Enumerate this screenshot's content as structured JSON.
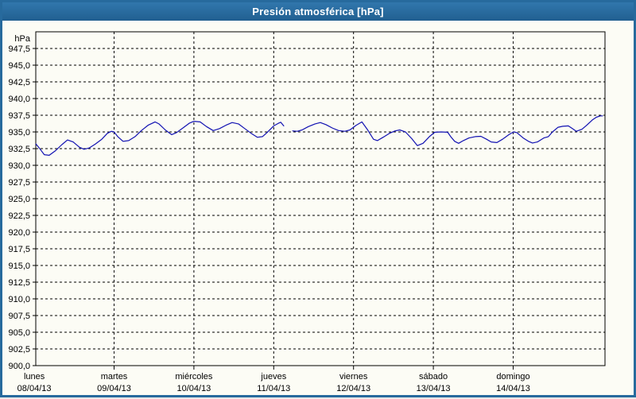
{
  "window": {
    "title": "Presión atmosférica [hPa]"
  },
  "colors": {
    "titlebar_bg": "#276a9d",
    "titlebar_text": "#ffffff",
    "window_border": "#276a9d",
    "body_bg": "#fcfcf5",
    "plot_frame": "#000000",
    "grid": "#000000",
    "line": "#1111b2"
  },
  "chart_data": {
    "type": "line",
    "title": "Presión atmosférica [hPa]",
    "unit_label": "hPa",
    "ylim": [
      900,
      950
    ],
    "ytick_step": 2.5,
    "ytick_values": [
      947.5,
      945,
      942.5,
      940,
      937.5,
      935,
      932.5,
      930,
      927.5,
      925,
      922.5,
      920,
      917.5,
      915,
      912.5,
      910,
      907.5,
      905,
      902.5,
      900
    ],
    "ytick_labels": [
      "947,5",
      "945,0",
      "942,5",
      "940,0",
      "937,5",
      "935,0",
      "932,5",
      "930,0",
      "927,5",
      "925,0",
      "922,5",
      "920,0",
      "917,5",
      "915,0",
      "912,5",
      "910,0",
      "907,5",
      "905,0",
      "902,5",
      "900,0"
    ],
    "grid": "dashed",
    "legend_position": "none",
    "x_axis": {
      "days": [
        {
          "name": "lunes",
          "date": "08/04/13"
        },
        {
          "name": "martes",
          "date": "09/04/13"
        },
        {
          "name": "miércoles",
          "date": "10/04/13"
        },
        {
          "name": "jueves",
          "date": "11/04/13"
        },
        {
          "name": "viernes",
          "date": "12/04/13"
        },
        {
          "name": "sábado",
          "date": "13/04/13"
        },
        {
          "name": "domingo",
          "date": "14/04/13"
        }
      ],
      "hours_total": 171.6,
      "day_boundaary_lines_hours": [
        24,
        48,
        72,
        96,
        120,
        144
      ]
    },
    "series": [
      {
        "name": "Presión atmosférica",
        "color": "#1111b2",
        "x_unit": "hours since lunes 08/04/13 00:00",
        "points": [
          [
            0.5,
            933.2
          ],
          [
            1.5,
            932.6
          ],
          [
            3,
            931.6
          ],
          [
            4.5,
            931.5
          ],
          [
            6.4,
            932.2
          ],
          [
            8.3,
            933.1
          ],
          [
            10,
            933.8
          ],
          [
            11.7,
            933.5
          ],
          [
            13.6,
            932.7
          ],
          [
            15,
            932.4
          ],
          [
            16.5,
            932.6
          ],
          [
            18.4,
            933.2
          ],
          [
            20.3,
            933.9
          ],
          [
            22,
            934.8
          ],
          [
            23.2,
            935.1
          ],
          [
            24,
            935.0
          ],
          [
            25.1,
            934.3
          ],
          [
            26.7,
            933.6
          ],
          [
            28.4,
            933.7
          ],
          [
            30.3,
            934.3
          ],
          [
            32.2,
            935.2
          ],
          [
            34.2,
            936.0
          ],
          [
            36.3,
            936.5
          ],
          [
            37.5,
            936.2
          ],
          [
            39.4,
            935.3
          ],
          [
            41.3,
            934.6
          ],
          [
            42.8,
            934.9
          ],
          [
            44.7,
            935.6
          ],
          [
            46.6,
            936.3
          ],
          [
            48,
            936.6
          ],
          [
            49.9,
            936.5
          ],
          [
            51.8,
            935.8
          ],
          [
            53.8,
            935.2
          ],
          [
            55.7,
            935.5
          ],
          [
            57.6,
            936.0
          ],
          [
            59.5,
            936.4
          ],
          [
            61.4,
            936.2
          ],
          [
            63.3,
            935.5
          ],
          [
            65.2,
            934.8
          ],
          [
            67.1,
            934.2
          ],
          [
            68.6,
            934.3
          ],
          [
            70,
            934.9
          ],
          [
            72,
            935.9
          ],
          [
            73.4,
            936.3
          ],
          [
            74.1,
            936.45
          ],
          [
            75,
            935.9
          ],
          null,
          [
            77.7,
            935.15
          ],
          [
            79.1,
            935.1
          ],
          [
            80.5,
            935.3
          ],
          [
            82.4,
            935.8
          ],
          [
            84.4,
            936.2
          ],
          [
            86,
            936.4
          ],
          [
            87.7,
            936.1
          ],
          [
            89.6,
            935.6
          ],
          [
            91.5,
            935.2
          ],
          [
            93.4,
            935.1
          ],
          [
            94.9,
            935.3
          ],
          [
            96.8,
            936.0
          ],
          [
            98.5,
            936.5
          ],
          [
            100.1,
            935.4
          ],
          [
            102,
            933.9
          ],
          [
            103.2,
            933.7
          ],
          [
            104.9,
            934.2
          ],
          [
            106.8,
            934.8
          ],
          [
            108.5,
            935.15
          ],
          [
            109.9,
            935.3
          ],
          [
            111.6,
            935.0
          ],
          [
            113.5,
            934.0
          ],
          [
            115.2,
            932.95
          ],
          [
            116.9,
            933.3
          ],
          [
            118.8,
            934.3
          ],
          [
            120.4,
            934.95
          ],
          [
            122.4,
            935.0
          ],
          [
            124.3,
            934.95
          ],
          [
            125.2,
            934.3
          ],
          [
            126.4,
            933.6
          ],
          [
            127.6,
            933.3
          ],
          [
            129,
            933.7
          ],
          [
            130.7,
            934.1
          ],
          [
            132.6,
            934.3
          ],
          [
            134.3,
            934.35
          ],
          [
            136,
            933.9
          ],
          [
            137.4,
            933.5
          ],
          [
            139.1,
            933.4
          ],
          [
            140.8,
            933.9
          ],
          [
            142.7,
            934.6
          ],
          [
            144.1,
            935.0
          ],
          [
            145.1,
            934.9
          ],
          [
            147,
            934.1
          ],
          [
            148.6,
            933.6
          ],
          [
            149.8,
            933.35
          ],
          [
            151.3,
            933.5
          ],
          [
            153.2,
            934.1
          ],
          [
            154.6,
            934.3
          ],
          [
            155.8,
            935.0
          ],
          [
            157.5,
            935.7
          ],
          [
            158.9,
            935.85
          ],
          [
            160.6,
            935.9
          ],
          [
            161.8,
            935.5
          ],
          [
            163,
            935.1
          ],
          [
            164.7,
            935.4
          ],
          [
            166.1,
            936.0
          ],
          [
            167.8,
            936.8
          ],
          [
            169,
            937.2
          ],
          [
            170.2,
            937.4
          ],
          [
            170.9,
            937.4
          ]
        ]
      }
    ]
  }
}
